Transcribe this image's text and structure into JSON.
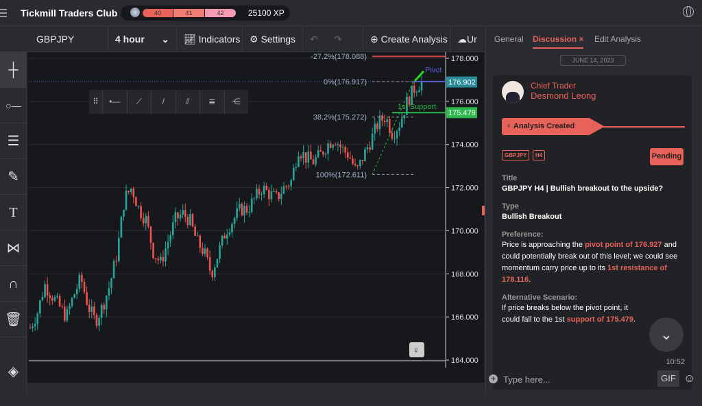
{
  "app": {
    "title": "Tickmill Traders Club",
    "xp": "25100 XP",
    "levels": [
      "40",
      "41",
      "42"
    ]
  },
  "toolbar": {
    "symbol": "GBPJPY",
    "timeframe": "4 hour",
    "indicators": "Indicators",
    "settings": "Settings",
    "create": "Create Analysis",
    "upload": "Ur"
  },
  "panel": {
    "tabs": [
      "General",
      "Discussion",
      "Edit Analysis"
    ],
    "close": "×",
    "date": "JUNE 14, 2023",
    "author_role": "Chief Trader",
    "author_name": "Desmond Leong",
    "stage": "Analysis Created",
    "tags": [
      "GBPJPY",
      "H4"
    ],
    "status": "Pending",
    "title_label": "Title",
    "title": "GBPJPY H4 | Bullish breakout to the upside?",
    "type_label": "Type",
    "type": "Bullish Breakout",
    "pref_label": "Preference:",
    "pref_1": "Price is approaching the ",
    "pref_2": "pivot point of 176.927",
    "pref_3": " and could potentially break out of this level; we could see momentum carry price up to its ",
    "pref_4": "1st resistance of 178.116",
    "pref_5": ".",
    "alt_label": "Alternative Scenario:",
    "alt_1": "If price breaks below the pivot point, it could fall to the 1st ",
    "alt_2": "support of 175.479",
    "alt_3": ".",
    "time": "10:52",
    "input_placeholder": "Type here...",
    "gif": "GIF"
  },
  "colors": {
    "accent": "#e8625a",
    "up": "#26a69a",
    "down": "#ef5350",
    "pivot": "#5b5bd6",
    "support": "#2db84d"
  },
  "chart_data": {
    "type": "candlestick",
    "symbol": "GBPJPY",
    "timeframe": "4 hour",
    "ylim": [
      164,
      178.3
    ],
    "yticks": [
      "178.000",
      "176.000",
      "174.000",
      "172.000",
      "170.000",
      "168.000",
      "166.000",
      "164.000"
    ],
    "close_path": [
      165.5,
      166.2,
      167.5,
      167,
      166.5,
      166,
      167,
      167.8,
      166.5,
      165.8,
      166.5,
      167.5,
      169,
      171.5,
      172,
      171,
      170.5,
      169,
      168.5,
      169.5,
      170.5,
      170.8,
      170.5,
      169.5,
      169,
      168,
      169,
      170,
      170.5,
      171,
      171,
      171.5,
      172,
      171.7,
      171.5,
      172,
      172.3,
      173.8,
      173.4,
      173.2,
      173.5,
      174,
      174.3,
      173.8,
      173.5,
      172.7,
      173.5,
      174.2,
      175,
      175.3,
      174.5,
      175,
      176,
      176.6,
      176.9
    ],
    "fib_levels": [
      {
        "label": "-27.2%(178.088)",
        "value": 178.088
      },
      {
        "label": "0%(176.917)",
        "value": 176.917
      },
      {
        "label": "38.2%(175.272)",
        "value": 175.272
      },
      {
        "label": "100%(172.611)",
        "value": 172.611
      }
    ],
    "current_price": "176.902",
    "support_price": "175.479",
    "support_label": "1st Support",
    "pivot_label": "Pivot"
  }
}
